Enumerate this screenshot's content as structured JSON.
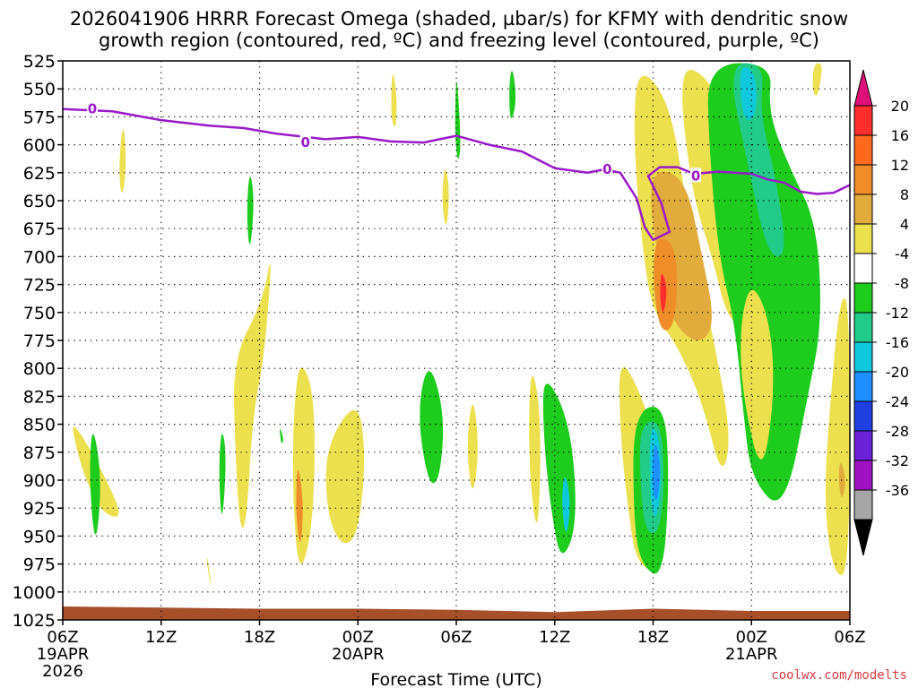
{
  "title_line1": "2026041906 HRRR Forecast Omega (shaded, µbar/s) for KFMY with dendritic snow",
  "title_line2": "growth region (contoured, red, ºC) and freezing level (contoured, purple, ºC)",
  "credit": "coolwx.com/modelts",
  "chart_data": {
    "type": "heatmap",
    "title": "2026041906 HRRR Forecast Omega (shaded, µbar/s) for KFMY with dendritic snow growth region (contoured, red, ºC) and freezing level (contoured, purple, ºC)",
    "xlabel": "Forecast Time (UTC)",
    "ylabel": "",
    "x_range_hours": [
      0,
      48
    ],
    "y_range_mb": [
      1025,
      525
    ],
    "y_ticks": [
      525,
      550,
      575,
      600,
      625,
      650,
      675,
      700,
      725,
      750,
      775,
      800,
      825,
      850,
      875,
      900,
      925,
      950,
      975,
      1000,
      1025
    ],
    "x_ticks": [
      {
        "hour": 0,
        "label": "06Z",
        "date": "19APR",
        "year": "2026"
      },
      {
        "hour": 6,
        "label": "12Z"
      },
      {
        "hour": 12,
        "label": "18Z"
      },
      {
        "hour": 18,
        "label": "00Z",
        "date": "20APR"
      },
      {
        "hour": 24,
        "label": "06Z"
      },
      {
        "hour": 30,
        "label": "12Z"
      },
      {
        "hour": 36,
        "label": "18Z"
      },
      {
        "hour": 42,
        "label": "00Z",
        "date": "21APR"
      },
      {
        "hour": 48,
        "label": "06Z"
      }
    ],
    "grid": true,
    "colorbar": {
      "labels": [
        "20",
        "16",
        "12",
        "8",
        "4",
        "-4",
        "-8",
        "-12",
        "-16",
        "-20",
        "-24",
        "-28",
        "-32",
        "-36"
      ],
      "colors": [
        "#ff2e2e",
        "#ff6a1f",
        "#ef8e28",
        "#e2ac3c",
        "#ece04f",
        "#ffffff",
        "#1dcc1d",
        "#22cc88",
        "#10c8dc",
        "#1e90ff",
        "#1f3fe0",
        "#6a22d6",
        "#9f12c2",
        "#a6a6a6"
      ],
      "top_color": "#e0107a",
      "bottom_color": "#000000"
    },
    "freezing_level": {
      "label": "0",
      "color": "#9a19c8",
      "points": [
        [
          0,
          568
        ],
        [
          3,
          570
        ],
        [
          6,
          578
        ],
        [
          9,
          583
        ],
        [
          11,
          585
        ],
        [
          13,
          590
        ],
        [
          16,
          595
        ],
        [
          18,
          593
        ],
        [
          20,
          597
        ],
        [
          22,
          598
        ],
        [
          24,
          592
        ],
        [
          25,
          596
        ],
        [
          26,
          600
        ],
        [
          28,
          606
        ],
        [
          30,
          621
        ],
        [
          32,
          625
        ],
        [
          33,
          622
        ],
        [
          34,
          625
        ],
        [
          35,
          648
        ],
        [
          35.5,
          674
        ],
        [
          36,
          685
        ],
        [
          37,
          678
        ],
        [
          36.5,
          652
        ],
        [
          35.7,
          628
        ],
        [
          36.4,
          620
        ],
        [
          37.5,
          620
        ],
        [
          38.5,
          626
        ],
        [
          40,
          624
        ],
        [
          42,
          626
        ],
        [
          43,
          631
        ],
        [
          44,
          634
        ],
        [
          45,
          642
        ],
        [
          46,
          644
        ],
        [
          47,
          643
        ],
        [
          48,
          636
        ]
      ],
      "label_points": [
        [
          1.8,
          567
        ],
        [
          14.8,
          597
        ],
        [
          33.2,
          621
        ],
        [
          38.6,
          627
        ]
      ]
    },
    "omega_features": [
      {
        "color": "#ece04f",
        "p": [
          [
            0.5,
            845
          ],
          [
            2,
            880
          ],
          [
            3.8,
            935
          ],
          [
            2.4,
            930
          ],
          [
            1.4,
            900
          ],
          [
            0.8,
            870
          ]
        ]
      },
      {
        "color": "#1dcc1d",
        "p": [
          [
            1.8,
            845
          ],
          [
            2.4,
            900
          ],
          [
            2.0,
            965
          ],
          [
            1.6,
            900
          ]
        ]
      },
      {
        "color": "#ece04f",
        "p": [
          [
            3.7,
            575
          ],
          [
            3.9,
            620
          ],
          [
            3.6,
            650
          ],
          [
            3.4,
            620
          ]
        ]
      },
      {
        "color": "#ece04f",
        "p": [
          [
            10.4,
            790
          ],
          [
            12.2,
            740
          ],
          [
            12.8,
            690
          ],
          [
            12.3,
            790
          ],
          [
            11.6,
            840
          ],
          [
            11.2,
            940
          ],
          [
            10.8,
            945
          ],
          [
            10.5,
            870
          ]
        ]
      },
      {
        "color": "#1dcc1d",
        "p": [
          [
            11.4,
            620
          ],
          [
            11.7,
            650
          ],
          [
            11.4,
            700
          ],
          [
            11.2,
            660
          ]
        ]
      },
      {
        "color": "#1dcc1d",
        "p": [
          [
            9.7,
            850
          ],
          [
            10.0,
            880
          ],
          [
            9.7,
            945
          ],
          [
            9.5,
            890
          ]
        ]
      },
      {
        "color": "#ece04f",
        "p": [
          [
            8.8,
            965
          ],
          [
            9.1,
            1000
          ],
          [
            8.9,
            985
          ],
          [
            8.8,
            975
          ]
        ]
      },
      {
        "color": "#1dcc1d",
        "p": [
          [
            13.2,
            850
          ],
          [
            13.5,
            865
          ],
          [
            13.3,
            868
          ]
        ]
      },
      {
        "color": "#ece04f",
        "p": [
          [
            14.5,
            790
          ],
          [
            15.4,
            825
          ],
          [
            15.3,
            940
          ],
          [
            14.4,
            990
          ],
          [
            14.0,
            910
          ],
          [
            14.1,
            830
          ]
        ]
      },
      {
        "color": "#ef8e28",
        "p": [
          [
            14.3,
            880
          ],
          [
            14.7,
            920
          ],
          [
            14.5,
            965
          ],
          [
            14.2,
            930
          ]
        ]
      },
      {
        "color": "#ece04f",
        "p": [
          [
            16.0,
            870
          ],
          [
            18.0,
            825
          ],
          [
            18.5,
            880
          ],
          [
            18.0,
            950
          ],
          [
            17.0,
            960
          ],
          [
            16.1,
            930
          ]
        ]
      },
      {
        "color": "#ece04f",
        "p": [
          [
            20.1,
            527
          ],
          [
            20.4,
            560
          ],
          [
            20.3,
            588
          ],
          [
            20.0,
            575
          ]
        ]
      },
      {
        "color": "#ece04f",
        "p": [
          [
            23.3,
            615
          ],
          [
            23.6,
            640
          ],
          [
            23.4,
            680
          ],
          [
            23.1,
            650
          ]
        ]
      },
      {
        "color": "#1dcc1d",
        "p": [
          [
            22.3,
            790
          ],
          [
            23.3,
            840
          ],
          [
            23.0,
            900
          ],
          [
            22.3,
            905
          ],
          [
            21.6,
            840
          ]
        ]
      },
      {
        "color": "#1dcc1d",
        "p": [
          [
            24.0,
            527
          ],
          [
            24.3,
            600
          ],
          [
            24.1,
            618
          ],
          [
            23.9,
            590
          ]
        ]
      },
      {
        "color": "#ece04f",
        "p": [
          [
            25.0,
            820
          ],
          [
            25.4,
            870
          ],
          [
            25.0,
            920
          ],
          [
            24.6,
            870
          ]
        ]
      },
      {
        "color": "#1dcc1d",
        "p": [
          [
            27.4,
            527
          ],
          [
            27.7,
            560
          ],
          [
            27.3,
            583
          ],
          [
            27.2,
            550
          ]
        ]
      },
      {
        "color": "#ece04f",
        "p": [
          [
            28.5,
            790
          ],
          [
            29.2,
            840
          ],
          [
            29.0,
            960
          ],
          [
            28.4,
            890
          ]
        ]
      },
      {
        "color": "#1dcc1d",
        "p": [
          [
            29.3,
            800
          ],
          [
            31.0,
            850
          ],
          [
            31.4,
            940
          ],
          [
            30.4,
            975
          ],
          [
            29.8,
            930
          ],
          [
            29.3,
            860
          ]
        ]
      },
      {
        "color": "#10c8dc",
        "p": [
          [
            30.6,
            890
          ],
          [
            31.0,
            920
          ],
          [
            30.7,
            955
          ],
          [
            30.4,
            920
          ]
        ]
      },
      {
        "color": "#ece04f",
        "p": [
          [
            35.0,
            527
          ],
          [
            37.0,
            560
          ],
          [
            38.0,
            650
          ],
          [
            38.6,
            700
          ],
          [
            39.5,
            760
          ],
          [
            40.8,
            860
          ],
          [
            40.2,
            900
          ],
          [
            39.0,
            830
          ],
          [
            37.5,
            780
          ],
          [
            36.0,
            750
          ],
          [
            35.4,
            700
          ],
          [
            34.8,
            600
          ]
        ]
      },
      {
        "color": "#e2ac3c",
        "p": [
          [
            36.0,
            620
          ],
          [
            38.0,
            630
          ],
          [
            39.0,
            700
          ],
          [
            39.8,
            760
          ],
          [
            38.8,
            780
          ],
          [
            37.2,
            760
          ],
          [
            36.6,
            720
          ],
          [
            35.8,
            660
          ]
        ]
      },
      {
        "color": "#ef8e28",
        "p": [
          [
            36.1,
            680
          ],
          [
            37.5,
            690
          ],
          [
            37.4,
            760
          ],
          [
            36.5,
            770
          ],
          [
            36.0,
            730
          ]
        ]
      },
      {
        "color": "#ff2e2e",
        "p": [
          [
            36.5,
            710
          ],
          [
            36.9,
            730
          ],
          [
            36.6,
            755
          ],
          [
            36.4,
            735
          ]
        ]
      },
      {
        "color": "#ece04f",
        "p": [
          [
            33.9,
            785
          ],
          [
            35.5,
            830
          ],
          [
            36.5,
            890
          ],
          [
            36.5,
            985
          ],
          [
            35.0,
            975
          ],
          [
            34.5,
            930
          ],
          [
            34.0,
            860
          ]
        ]
      },
      {
        "color": "#1dcc1d",
        "p": [
          [
            34.8,
            840
          ],
          [
            36.7,
            830
          ],
          [
            37.0,
            900
          ],
          [
            36.6,
            990
          ],
          [
            35.2,
            975
          ],
          [
            34.8,
            930
          ]
        ]
      },
      {
        "color": "#22cc88",
        "p": [
          [
            35.2,
            850
          ],
          [
            36.5,
            845
          ],
          [
            36.7,
            910
          ],
          [
            36.3,
            950
          ],
          [
            35.5,
            945
          ],
          [
            35.2,
            900
          ]
        ]
      },
      {
        "color": "#10c8dc",
        "p": [
          [
            35.8,
            850
          ],
          [
            36.4,
            860
          ],
          [
            36.5,
            910
          ],
          [
            36.1,
            940
          ],
          [
            35.8,
            910
          ]
        ]
      },
      {
        "color": "#1e90ff",
        "p": [
          [
            36.1,
            860
          ],
          [
            36.5,
            890
          ],
          [
            36.2,
            925
          ],
          [
            35.9,
            900
          ]
        ]
      },
      {
        "color": "#ece04f",
        "p": [
          [
            37.5,
            527
          ],
          [
            39.5,
            540
          ],
          [
            41.0,
            600
          ],
          [
            42.4,
            700
          ],
          [
            42.0,
            760
          ],
          [
            40.6,
            760
          ],
          [
            39.6,
            700
          ],
          [
            38.3,
            640
          ]
        ]
      },
      {
        "color": "#1dcc1d",
        "p": [
          [
            39.3,
            527
          ],
          [
            43.3,
            527
          ],
          [
            43.0,
            570
          ],
          [
            44.3,
            620
          ],
          [
            46.0,
            670
          ],
          [
            46.3,
            760
          ],
          [
            45.5,
            820
          ],
          [
            44.0,
            930
          ],
          [
            42.0,
            900
          ],
          [
            41.5,
            840
          ],
          [
            41.0,
            760
          ],
          [
            40.0,
            700
          ],
          [
            39.4,
            600
          ]
        ]
      },
      {
        "color": "#22cc88",
        "p": [
          [
            40.5,
            527
          ],
          [
            42.8,
            527
          ],
          [
            42.5,
            570
          ],
          [
            43.5,
            630
          ],
          [
            44.2,
            700
          ],
          [
            43.0,
            700
          ],
          [
            41.8,
            620
          ]
        ]
      },
      {
        "color": "#10c8dc",
        "p": [
          [
            41.2,
            527
          ],
          [
            42.3,
            535
          ],
          [
            42.3,
            575
          ],
          [
            41.5,
            580
          ]
        ]
      },
      {
        "color": "#ece04f",
        "p": [
          [
            42.0,
            720
          ],
          [
            43.2,
            760
          ],
          [
            43.4,
            830
          ],
          [
            42.6,
            900
          ],
          [
            41.4,
            820
          ],
          [
            41.3,
            760
          ]
        ]
      },
      {
        "color": "#ece04f",
        "p": [
          [
            45.8,
            527
          ],
          [
            46.4,
            527
          ],
          [
            46.0,
            560
          ],
          [
            45.7,
            550
          ]
        ]
      },
      {
        "color": "#ece04f",
        "p": [
          [
            47.4,
            735
          ],
          [
            48.0,
            740
          ],
          [
            48.0,
            985
          ],
          [
            47.0,
            985
          ],
          [
            46.4,
            920
          ],
          [
            46.8,
            830
          ]
        ]
      },
      {
        "color": "#e2ac3c",
        "p": [
          [
            47.4,
            880
          ],
          [
            47.8,
            900
          ],
          [
            47.5,
            920
          ],
          [
            47.3,
            900
          ]
        ]
      }
    ],
    "terrain": {
      "color": "#a64f29",
      "points": [
        [
          0,
          1013
        ],
        [
          6,
          1014
        ],
        [
          12,
          1015
        ],
        [
          18,
          1015
        ],
        [
          24,
          1016
        ],
        [
          30,
          1018
        ],
        [
          36,
          1015
        ],
        [
          42,
          1017
        ],
        [
          48,
          1017
        ]
      ]
    }
  }
}
